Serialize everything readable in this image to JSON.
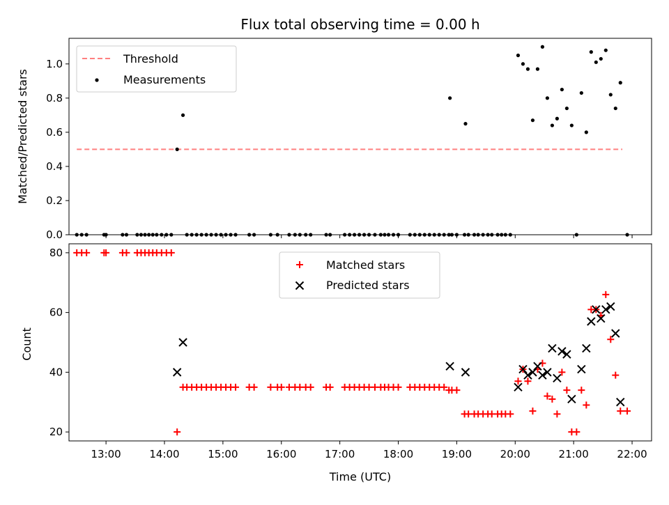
{
  "chart_data": [
    {
      "type": "scatter",
      "title": "Flux total observing time = 0.00 h",
      "xlabel": "",
      "ylabel": "Matched/Predicted stars",
      "ylim": [
        0,
        1.15
      ],
      "yticks": [
        "0.0",
        "0.2",
        "0.4",
        "0.6",
        "0.8",
        "1.0"
      ],
      "ytick_values": [
        0,
        0.2,
        0.4,
        0.6,
        0.8,
        1.0
      ],
      "xlim": [
        "12:22",
        "22:20"
      ],
      "legend_position": "top-left",
      "threshold": {
        "name": "Threshold",
        "value": 0.5,
        "x_range": [
          "12:30",
          "21:50"
        ],
        "color": "#ff7f7f",
        "style": "dashed"
      },
      "series": [
        {
          "name": "Measurements",
          "color": "#000000",
          "points": [
            [
              "12:30",
              0
            ],
            [
              "12:35",
              0
            ],
            [
              "12:40",
              0
            ],
            [
              "12:58",
              0
            ],
            [
              "13:00",
              0
            ],
            [
              "13:17",
              0
            ],
            [
              "13:21",
              0
            ],
            [
              "13:32",
              0
            ],
            [
              "13:36",
              0
            ],
            [
              "13:40",
              0
            ],
            [
              "13:44",
              0
            ],
            [
              "13:48",
              0
            ],
            [
              "13:52",
              0
            ],
            [
              "13:57",
              0
            ],
            [
              "14:02",
              0
            ],
            [
              "14:07",
              0
            ],
            [
              "14:13",
              0.5
            ],
            [
              "14:19",
              0.7
            ],
            [
              "14:23",
              0
            ],
            [
              "14:28",
              0
            ],
            [
              "14:33",
              0
            ],
            [
              "14:38",
              0
            ],
            [
              "14:43",
              0
            ],
            [
              "14:48",
              0
            ],
            [
              "14:53",
              0
            ],
            [
              "14:58",
              0
            ],
            [
              "15:03",
              0
            ],
            [
              "15:08",
              0
            ],
            [
              "15:13",
              0
            ],
            [
              "15:27",
              0
            ],
            [
              "15:32",
              0
            ],
            [
              "15:49",
              0
            ],
            [
              "15:56",
              0
            ],
            [
              "16:08",
              0
            ],
            [
              "16:14",
              0
            ],
            [
              "16:19",
              0
            ],
            [
              "16:25",
              0
            ],
            [
              "16:30",
              0
            ],
            [
              "16:46",
              0
            ],
            [
              "16:50",
              0
            ],
            [
              "17:05",
              0
            ],
            [
              "17:10",
              0
            ],
            [
              "17:15",
              0
            ],
            [
              "17:20",
              0
            ],
            [
              "17:25",
              0
            ],
            [
              "17:30",
              0
            ],
            [
              "17:36",
              0
            ],
            [
              "17:42",
              0
            ],
            [
              "17:46",
              0
            ],
            [
              "17:50",
              0
            ],
            [
              "17:55",
              0
            ],
            [
              "18:00",
              0
            ],
            [
              "18:12",
              0
            ],
            [
              "18:17",
              0
            ],
            [
              "18:22",
              0
            ],
            [
              "18:27",
              0
            ],
            [
              "18:32",
              0
            ],
            [
              "18:37",
              0
            ],
            [
              "18:42",
              0
            ],
            [
              "18:47",
              0
            ],
            [
              "18:52",
              0
            ],
            [
              "18:55",
              0
            ],
            [
              "19:00",
              0
            ],
            [
              "19:08",
              0
            ],
            [
              "19:12",
              0
            ],
            [
              "19:18",
              0
            ],
            [
              "19:22",
              0
            ],
            [
              "19:27",
              0
            ],
            [
              "19:32",
              0
            ],
            [
              "19:36",
              0
            ],
            [
              "19:42",
              0
            ],
            [
              "19:46",
              0
            ],
            [
              "19:50",
              0
            ],
            [
              "19:55",
              0
            ],
            [
              "18:53",
              0.8
            ],
            [
              "19:09",
              0.65
            ],
            [
              "20:03",
              1.05
            ],
            [
              "20:08",
              1.0
            ],
            [
              "20:13",
              0.97
            ],
            [
              "20:18",
              0.67
            ],
            [
              "20:23",
              0.97
            ],
            [
              "20:28",
              1.1
            ],
            [
              "20:33",
              0.8
            ],
            [
              "20:38",
              0.64
            ],
            [
              "20:43",
              0.68
            ],
            [
              "20:48",
              0.85
            ],
            [
              "20:53",
              0.74
            ],
            [
              "20:58",
              0.64
            ],
            [
              "21:03",
              0
            ],
            [
              "21:08",
              0.83
            ],
            [
              "21:13",
              0.6
            ],
            [
              "21:18",
              1.07
            ],
            [
              "21:23",
              1.01
            ],
            [
              "21:28",
              1.03
            ],
            [
              "21:33",
              1.08
            ],
            [
              "21:38",
              0.82
            ],
            [
              "21:43",
              0.74
            ],
            [
              "21:48",
              0.89
            ],
            [
              "21:55",
              0
            ]
          ]
        }
      ]
    },
    {
      "type": "scatter",
      "title": "",
      "xlabel": "Time (UTC)",
      "ylabel": "Count",
      "ylim": [
        17,
        83
      ],
      "yticks": [
        "20",
        "40",
        "60",
        "80"
      ],
      "ytick_values": [
        20,
        40,
        60,
        80
      ],
      "xlim": [
        "12:22",
        "22:20"
      ],
      "xticks": [
        "13:00",
        "14:00",
        "15:00",
        "16:00",
        "17:00",
        "18:00",
        "19:00",
        "20:00",
        "21:00",
        "22:00"
      ],
      "legend_position": "top-center",
      "series": [
        {
          "name": "Matched stars",
          "marker": "plus",
          "color": "#ff0000",
          "points": [
            [
              "12:30",
              80
            ],
            [
              "12:35",
              80
            ],
            [
              "12:40",
              80
            ],
            [
              "12:58",
              80
            ],
            [
              "13:00",
              80
            ],
            [
              "13:17",
              80
            ],
            [
              "13:21",
              80
            ],
            [
              "13:32",
              80
            ],
            [
              "13:36",
              80
            ],
            [
              "13:40",
              80
            ],
            [
              "13:44",
              80
            ],
            [
              "13:48",
              80
            ],
            [
              "13:52",
              80
            ],
            [
              "13:57",
              80
            ],
            [
              "14:02",
              80
            ],
            [
              "14:07",
              80
            ],
            [
              "14:13",
              20
            ],
            [
              "14:19",
              35
            ],
            [
              "14:23",
              35
            ],
            [
              "14:28",
              35
            ],
            [
              "14:33",
              35
            ],
            [
              "14:38",
              35
            ],
            [
              "14:43",
              35
            ],
            [
              "14:48",
              35
            ],
            [
              "14:53",
              35
            ],
            [
              "14:58",
              35
            ],
            [
              "15:03",
              35
            ],
            [
              "15:08",
              35
            ],
            [
              "15:13",
              35
            ],
            [
              "15:27",
              35
            ],
            [
              "15:32",
              35
            ],
            [
              "15:49",
              35
            ],
            [
              "15:56",
              35
            ],
            [
              "16:00",
              35
            ],
            [
              "16:08",
              35
            ],
            [
              "16:14",
              35
            ],
            [
              "16:19",
              35
            ],
            [
              "16:25",
              35
            ],
            [
              "16:30",
              35
            ],
            [
              "16:46",
              35
            ],
            [
              "16:50",
              35
            ],
            [
              "17:05",
              35
            ],
            [
              "17:10",
              35
            ],
            [
              "17:15",
              35
            ],
            [
              "17:20",
              35
            ],
            [
              "17:25",
              35
            ],
            [
              "17:30",
              35
            ],
            [
              "17:36",
              35
            ],
            [
              "17:42",
              35
            ],
            [
              "17:46",
              35
            ],
            [
              "17:50",
              35
            ],
            [
              "17:55",
              35
            ],
            [
              "18:00",
              35
            ],
            [
              "18:12",
              35
            ],
            [
              "18:17",
              35
            ],
            [
              "18:22",
              35
            ],
            [
              "18:27",
              35
            ],
            [
              "18:32",
              35
            ],
            [
              "18:37",
              35
            ],
            [
              "18:42",
              35
            ],
            [
              "18:47",
              35
            ],
            [
              "18:52",
              34
            ],
            [
              "18:55",
              34
            ],
            [
              "19:00",
              34
            ],
            [
              "19:08",
              26
            ],
            [
              "19:12",
              26
            ],
            [
              "19:18",
              26
            ],
            [
              "19:22",
              26
            ],
            [
              "19:27",
              26
            ],
            [
              "19:32",
              26
            ],
            [
              "19:36",
              26
            ],
            [
              "19:42",
              26
            ],
            [
              "19:46",
              26
            ],
            [
              "19:50",
              26
            ],
            [
              "19:55",
              26
            ],
            [
              "20:03",
              37
            ],
            [
              "20:08",
              41
            ],
            [
              "20:13",
              37
            ],
            [
              "20:18",
              27
            ],
            [
              "20:23",
              41
            ],
            [
              "20:28",
              43
            ],
            [
              "20:33",
              32
            ],
            [
              "20:38",
              31
            ],
            [
              "20:43",
              26
            ],
            [
              "20:48",
              40
            ],
            [
              "20:53",
              34
            ],
            [
              "20:58",
              20
            ],
            [
              "21:03",
              20
            ],
            [
              "21:08",
              34
            ],
            [
              "21:13",
              29
            ],
            [
              "21:18",
              61
            ],
            [
              "21:23",
              61
            ],
            [
              "21:28",
              59
            ],
            [
              "21:33",
              66
            ],
            [
              "21:38",
              51
            ],
            [
              "21:43",
              39
            ],
            [
              "21:48",
              27
            ],
            [
              "21:55",
              27
            ]
          ]
        },
        {
          "name": "Predicted stars",
          "marker": "x",
          "color": "#000000",
          "points": [
            [
              "14:13",
              40
            ],
            [
              "14:19",
              50
            ],
            [
              "18:53",
              42
            ],
            [
              "19:09",
              40
            ],
            [
              "20:03",
              35
            ],
            [
              "20:08",
              41
            ],
            [
              "20:13",
              39
            ],
            [
              "20:18",
              40
            ],
            [
              "20:23",
              42
            ],
            [
              "20:28",
              39
            ],
            [
              "20:33",
              40
            ],
            [
              "20:38",
              48
            ],
            [
              "20:43",
              38
            ],
            [
              "20:48",
              47
            ],
            [
              "20:53",
              46
            ],
            [
              "20:58",
              31
            ],
            [
              "21:08",
              41
            ],
            [
              "21:13",
              48
            ],
            [
              "21:18",
              57
            ],
            [
              "21:23",
              61
            ],
            [
              "21:28",
              58
            ],
            [
              "21:33",
              61
            ],
            [
              "21:38",
              62
            ],
            [
              "21:43",
              53
            ],
            [
              "21:48",
              30
            ]
          ]
        }
      ]
    }
  ]
}
